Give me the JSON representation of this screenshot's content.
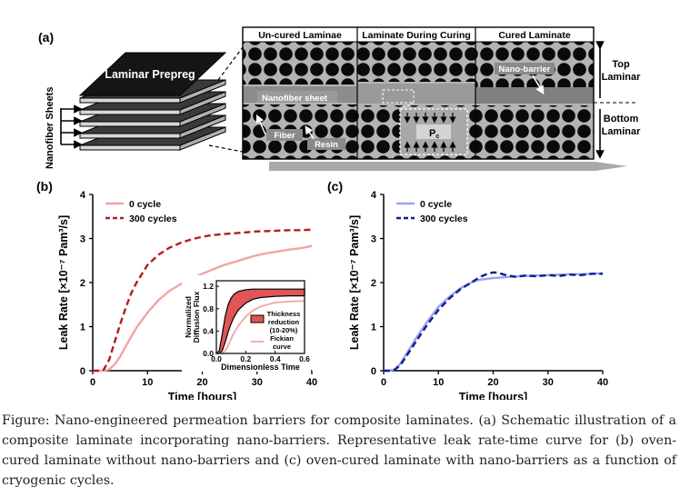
{
  "figure": {
    "panel_a": {
      "label": "(a)",
      "stack_label": "Laminar Prepreg",
      "side_label": "Nanofiber Sheets",
      "columns": [
        "Un-cured Laminae",
        "Laminate During Curing",
        "Cured Laminate"
      ],
      "annotations": {
        "nanofiber_sheet": "Nanofiber sheet",
        "fiber": "Fiber",
        "resin": "Resin",
        "pressure": "P",
        "pressure_sub": "c",
        "nano_barrier": "Nano-barrier",
        "top_laminar_1": "Top",
        "top_laminar_2": "Laminar",
        "bottom_laminar_1": "Bottom",
        "bottom_laminar_2": "Laminar"
      }
    },
    "caption": "Figure: Nano-engineered permeation barriers for composite laminates. (a) Schematic illustration of a composite laminate incorporating nano-barriers. Representative leak rate-time curve for (b) oven-cured laminate without nano-barriers and (c) oven-cured laminate with nano-barriers as a function of cryogenic cycles."
  },
  "chart_data": [
    {
      "panel": "(b)",
      "type": "line",
      "xlabel": "Time [hours]",
      "ylabel": "Leak Rate [×10⁻⁷ Pam³/s]",
      "xlim": [
        0,
        40
      ],
      "ylim": [
        0,
        4
      ],
      "xticks": [
        0,
        10,
        20,
        30,
        40
      ],
      "yticks": [
        0,
        1,
        2,
        3,
        4
      ],
      "legend": "top-left",
      "series": [
        {
          "name": "0 cycle",
          "color": "#f4a3a3",
          "dash": "solid",
          "x": [
            0,
            2,
            3,
            4,
            5,
            6,
            8,
            10,
            12,
            14,
            16,
            18,
            20,
            22,
            24,
            26,
            28,
            30,
            32,
            34,
            36,
            38,
            40
          ],
          "y": [
            0,
            0,
            0.03,
            0.14,
            0.32,
            0.55,
            0.98,
            1.32,
            1.6,
            1.81,
            1.96,
            2.08,
            2.2,
            2.3,
            2.4,
            2.47,
            2.55,
            2.62,
            2.67,
            2.71,
            2.75,
            2.78,
            2.83
          ]
        },
        {
          "name": "300 cycles",
          "color": "#b01e1e",
          "dash": "dashed",
          "x": [
            0,
            1,
            2,
            3,
            4,
            5,
            6,
            7,
            8,
            10,
            12,
            14,
            16,
            18,
            20,
            22,
            24,
            26,
            28,
            30,
            32,
            34,
            36,
            38,
            40
          ],
          "y": [
            0,
            0,
            0.02,
            0.25,
            0.65,
            1.05,
            1.42,
            1.75,
            2.0,
            2.4,
            2.63,
            2.79,
            2.9,
            2.98,
            3.04,
            3.08,
            3.1,
            3.12,
            3.14,
            3.16,
            3.17,
            3.18,
            3.19,
            3.19,
            3.2
          ]
        }
      ],
      "inset": {
        "type": "area",
        "xlabel": "Dimensionless Time",
        "ylabel_1": "Normalized",
        "ylabel_2": "Diffusion Flux",
        "xlim": [
          0,
          0.6
        ],
        "ylim": [
          0,
          1.3
        ],
        "xticks": [
          0.0,
          0.2,
          0.4,
          0.6
        ],
        "yticks": [
          0.0,
          0.4,
          0.8,
          1.2
        ],
        "series": [
          {
            "name": "Thickness reduction (10-20%)",
            "color": "#e05555",
            "x": [
              0,
              0.02,
              0.04,
              0.06,
              0.08,
              0.1,
              0.12,
              0.15,
              0.2,
              0.25,
              0.3,
              0.4,
              0.5,
              0.6
            ],
            "upper": [
              0,
              0.05,
              0.35,
              0.66,
              0.87,
              0.99,
              1.06,
              1.11,
              1.14,
              1.15,
              1.15,
              1.15,
              1.15,
              1.15
            ],
            "lower": [
              0,
              0,
              0.05,
              0.2,
              0.38,
              0.53,
              0.65,
              0.78,
              0.9,
              0.97,
              1.0,
              1.02,
              1.03,
              1.03
            ]
          },
          {
            "name": "Fickian curve",
            "color": "#f4a3a3",
            "x": [
              0,
              0.04,
              0.06,
              0.08,
              0.1,
              0.12,
              0.15,
              0.2,
              0.25,
              0.3,
              0.4,
              0.5,
              0.6
            ],
            "y": [
              0,
              0,
              0.05,
              0.14,
              0.26,
              0.37,
              0.5,
              0.66,
              0.77,
              0.84,
              0.91,
              0.93,
              0.94
            ]
          }
        ],
        "legend_label_1": "Thickness",
        "legend_label_2": "reduction",
        "legend_label_3": "(10-20%)",
        "legend_label_fick_1": "Fickian",
        "legend_label_fick_2": "curve"
      }
    },
    {
      "panel": "(c)",
      "type": "line",
      "xlabel": "Time [hours]",
      "ylabel": "Leak Rate [×10⁻⁷ Pam³/s]",
      "xlim": [
        0,
        40
      ],
      "ylim": [
        0,
        4
      ],
      "xticks": [
        0,
        10,
        20,
        30,
        40
      ],
      "yticks": [
        0,
        1,
        2,
        3,
        4
      ],
      "legend": "top-left",
      "series": [
        {
          "name": "0 cycle",
          "color": "#9aa3f2",
          "dash": "solid",
          "x": [
            0,
            1,
            2,
            3,
            4,
            6,
            8,
            10,
            12,
            14,
            16,
            17,
            18,
            20,
            22,
            24,
            26,
            28,
            30,
            32,
            34,
            36,
            38,
            40
          ],
          "y": [
            0,
            0,
            0.03,
            0.15,
            0.35,
            0.75,
            1.12,
            1.45,
            1.68,
            1.87,
            2.0,
            2.05,
            2.07,
            2.1,
            2.12,
            2.14,
            2.15,
            2.16,
            2.17,
            2.18,
            2.19,
            2.19,
            2.2,
            2.21
          ]
        },
        {
          "name": "300 cycles",
          "color": "#0d1f8a",
          "dash": "dashed",
          "x": [
            0,
            1,
            2,
            3,
            4,
            6,
            8,
            10,
            12,
            14,
            16,
            17,
            18,
            19,
            20,
            21,
            22,
            24,
            26,
            28,
            30,
            32,
            34,
            36,
            38,
            40
          ],
          "y": [
            0,
            0,
            0.02,
            0.12,
            0.3,
            0.68,
            1.05,
            1.38,
            1.64,
            1.85,
            2.0,
            2.08,
            2.15,
            2.2,
            2.23,
            2.22,
            2.18,
            2.13,
            2.16,
            2.14,
            2.17,
            2.15,
            2.18,
            2.17,
            2.2,
            2.2
          ]
        }
      ]
    }
  ]
}
